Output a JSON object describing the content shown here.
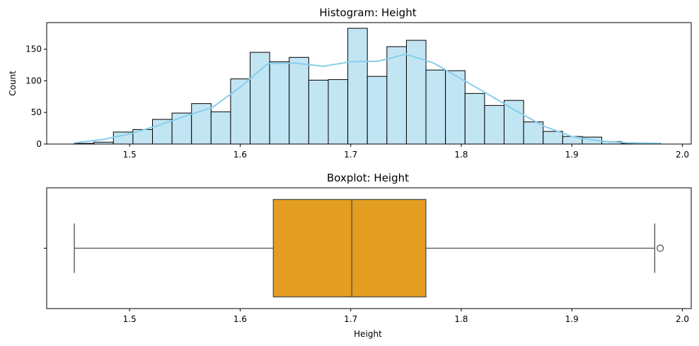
{
  "chart_data": [
    {
      "type": "bar",
      "subtype": "histogram",
      "title": "Histogram: Height",
      "xlabel": "",
      "ylabel": "Count",
      "xlim": [
        1.425,
        2.008
      ],
      "ylim": [
        0,
        192
      ],
      "xticks": [
        1.5,
        1.6,
        1.7,
        1.8,
        1.9,
        2.0
      ],
      "xtick_labels": [
        "1.5",
        "1.6",
        "1.7",
        "1.8",
        "1.9",
        "2.0"
      ],
      "yticks": [
        0,
        50,
        100,
        150
      ],
      "ytick_labels": [
        "0",
        "50",
        "100",
        "150"
      ],
      "bin_start": 1.45,
      "bin_width": 0.01767,
      "counts": [
        1,
        3,
        19,
        23,
        39,
        49,
        64,
        51,
        103,
        145,
        130,
        137,
        101,
        102,
        183,
        107,
        154,
        164,
        117,
        116,
        80,
        61,
        69,
        35,
        20,
        12,
        11,
        4,
        1,
        1
      ],
      "kde": {
        "x": [
          1.45,
          1.475,
          1.5,
          1.525,
          1.55,
          1.575,
          1.6,
          1.625,
          1.65,
          1.675,
          1.7,
          1.725,
          1.75,
          1.775,
          1.8,
          1.825,
          1.85,
          1.875,
          1.9,
          1.925,
          1.95,
          1.98
        ],
        "y": [
          2,
          7,
          16,
          29,
          44,
          58,
          90,
          127,
          128,
          123,
          130,
          131,
          142,
          128,
          103,
          78,
          52,
          28,
          12,
          5,
          2,
          1
        ]
      },
      "bar_color": "#c2e5f4",
      "bar_edge_color": "#000000",
      "kde_color": "#87ceeb",
      "grid": false
    },
    {
      "type": "boxplot",
      "title": "Boxplot: Height",
      "xlabel": "Height",
      "ylabel": "",
      "xlim": [
        1.425,
        2.008
      ],
      "xticks": [
        1.5,
        1.6,
        1.7,
        1.8,
        1.9,
        2.0
      ],
      "xtick_labels": [
        "1.5",
        "1.6",
        "1.7",
        "1.8",
        "1.9",
        "2.0"
      ],
      "ytick_labels": [
        ""
      ],
      "whisker_low": 1.45,
      "q1": 1.63,
      "median": 1.701,
      "q3": 1.768,
      "whisker_high": 1.975,
      "outliers": [
        1.98
      ],
      "box_color": "#e39d21",
      "line_color": "#4d4d4d",
      "grid": false
    }
  ]
}
